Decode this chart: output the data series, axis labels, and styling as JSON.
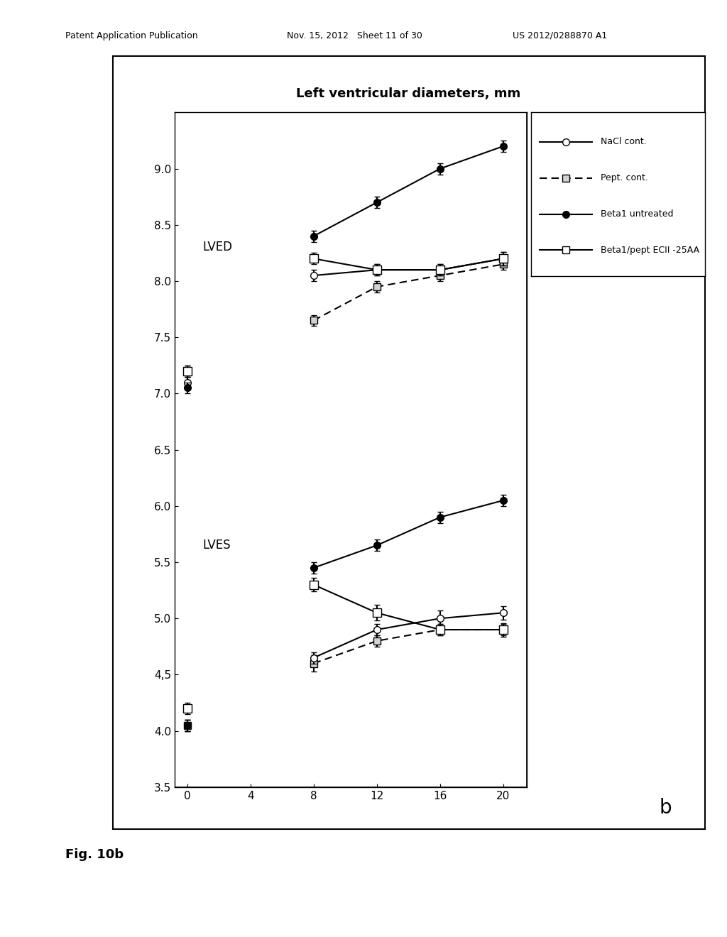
{
  "title": "Left ventricular diameters, mm",
  "x_values": [
    0,
    4,
    8,
    12,
    16,
    20
  ],
  "x_ticks": [
    0,
    4,
    8,
    12,
    16,
    20
  ],
  "ylim": [
    3.5,
    9.5
  ],
  "yticks": [
    3.5,
    4.0,
    4.5,
    5.0,
    5.5,
    6.0,
    6.5,
    7.0,
    7.5,
    8.0,
    8.5,
    9.0
  ],
  "lved_nacl": [
    7.1,
    null,
    8.05,
    8.1,
    8.1,
    8.2
  ],
  "lved_pept": [
    7.2,
    null,
    7.65,
    7.95,
    8.05,
    8.15
  ],
  "lved_beta1": [
    7.05,
    null,
    8.4,
    8.7,
    9.0,
    9.2
  ],
  "lved_beta1pept": [
    7.2,
    null,
    8.2,
    8.1,
    8.1,
    8.2
  ],
  "lves_nacl": [
    4.05,
    null,
    4.65,
    4.9,
    5.0,
    5.05
  ],
  "lves_pept": [
    4.05,
    null,
    4.6,
    4.8,
    4.9,
    4.9
  ],
  "lves_beta1": [
    4.05,
    null,
    5.45,
    5.65,
    5.9,
    6.05
  ],
  "lves_beta1pept": [
    4.2,
    null,
    5.3,
    5.05,
    4.9,
    4.9
  ],
  "lved_nacl_err": [
    0.05,
    null,
    0.05,
    0.05,
    0.05,
    0.06
  ],
  "lved_pept_err": [
    0.05,
    null,
    0.05,
    0.05,
    0.05,
    0.05
  ],
  "lved_beta1_err": [
    0.05,
    null,
    0.05,
    0.05,
    0.05,
    0.05
  ],
  "lved_beta1pept_err": [
    0.05,
    null,
    0.05,
    0.05,
    0.05,
    0.06
  ],
  "lves_nacl_err": [
    0.05,
    null,
    0.05,
    0.05,
    0.07,
    0.06
  ],
  "lves_pept_err": [
    0.05,
    null,
    0.07,
    0.05,
    0.05,
    0.05
  ],
  "lves_beta1_err": [
    0.05,
    null,
    0.05,
    0.05,
    0.05,
    0.05
  ],
  "lves_beta1pept_err": [
    0.05,
    null,
    0.06,
    0.07,
    0.05,
    0.06
  ],
  "label_nacl": "NaCl cont.",
  "label_pept": "Pept. cont.",
  "label_beta1": "Beta1 untreated",
  "label_beta1pept": "Beta1/pept ECII -25AA",
  "header_left": "Patent Application Publication",
  "header_mid": "Nov. 15, 2012   Sheet 11 of 30",
  "header_right": "US 2012/0288870 A1",
  "fig_caption": "Fig. 10b",
  "fig_label": "b"
}
